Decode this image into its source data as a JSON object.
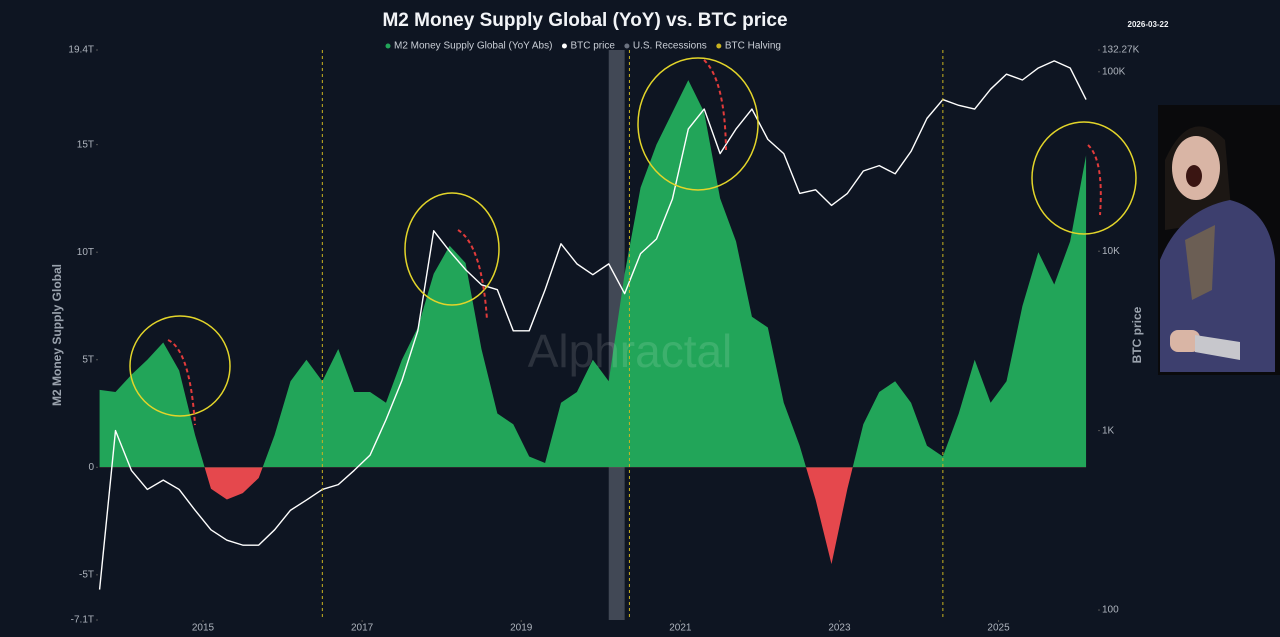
{
  "chart_data": {
    "type": "area_line",
    "title": "M2 Money Supply Global (YoY) vs. BTC price",
    "date": "2026-03-22",
    "watermark": "Alphractal",
    "y_label": "M2 Money Supply Global",
    "y2_label": "BTC price",
    "x": [
      2013.7,
      2013.9,
      2014.1,
      2014.3,
      2014.5,
      2014.7,
      2014.9,
      2015.1,
      2015.3,
      2015.5,
      2015.7,
      2015.9,
      2016.1,
      2016.3,
      2016.5,
      2016.7,
      2016.9,
      2017.1,
      2017.3,
      2017.5,
      2017.7,
      2017.9,
      2018.1,
      2018.3,
      2018.5,
      2018.7,
      2018.9,
      2019.1,
      2019.3,
      2019.5,
      2019.7,
      2019.9,
      2020.1,
      2020.3,
      2020.5,
      2020.7,
      2020.9,
      2021.1,
      2021.3,
      2021.5,
      2021.7,
      2021.9,
      2022.1,
      2022.3,
      2022.5,
      2022.7,
      2022.9,
      2023.1,
      2023.3,
      2023.5,
      2023.7,
      2023.9,
      2024.1,
      2024.3,
      2024.5,
      2024.7,
      2024.9,
      2025.1,
      2025.3,
      2025.5,
      2025.7,
      2025.9,
      2026.1
    ],
    "series": [
      {
        "name": "M2 Money Supply Global (YoY Abs)",
        "color": "#22a559",
        "negative_color": "#e5484d",
        "values": [
          3.6,
          3.5,
          4.3,
          5.0,
          5.8,
          4.5,
          1.5,
          -1.0,
          -1.5,
          -1.2,
          -0.5,
          1.5,
          4.0,
          5.0,
          4.0,
          5.5,
          3.5,
          3.5,
          3.0,
          5.0,
          6.5,
          9.0,
          10.3,
          9.5,
          5.5,
          2.5,
          2.0,
          0.5,
          0.2,
          3.0,
          3.5,
          5.0,
          4.0,
          9.0,
          13.0,
          15.0,
          16.5,
          18.0,
          16.5,
          12.5,
          10.5,
          7.0,
          6.5,
          3.0,
          1.0,
          -1.5,
          -4.5,
          -1.0,
          2.0,
          3.5,
          4.0,
          3.0,
          1.0,
          0.5,
          2.5,
          5.0,
          3.0,
          4.0,
          7.5,
          10.0,
          8.5,
          10.5,
          14.5
        ]
      },
      {
        "name": "BTC price",
        "color": "#ffffff",
        "axis": "y2",
        "values": [
          130,
          1000,
          600,
          470,
          530,
          470,
          360,
          280,
          245,
          230,
          230,
          280,
          360,
          410,
          470,
          500,
          600,
          730,
          1150,
          1900,
          3600,
          13000,
          10000,
          7900,
          6500,
          6100,
          3600,
          3600,
          6100,
          11000,
          8500,
          7400,
          8500,
          5800,
          9700,
          11700,
          19500,
          48000,
          62000,
          35000,
          48000,
          62000,
          42000,
          35000,
          21000,
          22000,
          18000,
          21000,
          28000,
          30000,
          27000,
          36000,
          55000,
          70000,
          65000,
          62000,
          80000,
          97000,
          90000,
          105000,
          115000,
          105000,
          70000
        ]
      }
    ],
    "recession": {
      "name": "U.S. Recessions",
      "color": "#6b7280",
      "x": [
        2020.1,
        2020.3
      ]
    },
    "halving": {
      "name": "BTC Halving",
      "color": "#c9b320",
      "x": [
        2016.5,
        2020.36,
        2024.3
      ]
    },
    "xlim": [
      2013.68,
      2026.25
    ],
    "xticks": [
      2015,
      2017,
      2019,
      2021,
      2023,
      2025
    ],
    "ylim": [
      -7.1,
      19.4
    ],
    "yticks": [
      {
        "value": 19.4,
        "label": "19.4T"
      },
      {
        "value": 15,
        "label": "15T"
      },
      {
        "value": 10,
        "label": "10T"
      },
      {
        "value": 5,
        "label": "5T"
      },
      0,
      {
        "value": -5,
        "label": "-5T"
      },
      {
        "value": -7.1,
        "label": "-7.1T"
      }
    ],
    "y2lim": [
      88,
      132270
    ],
    "y2log": true,
    "y2ticks": [
      {
        "value": 132270,
        "label": "132.27K"
      },
      {
        "value": 100000,
        "label": "100K"
      },
      {
        "value": 10000,
        "label": "10K"
      },
      {
        "value": 1000,
        "label": "1K"
      },
      100
    ],
    "grid": false
  }
}
